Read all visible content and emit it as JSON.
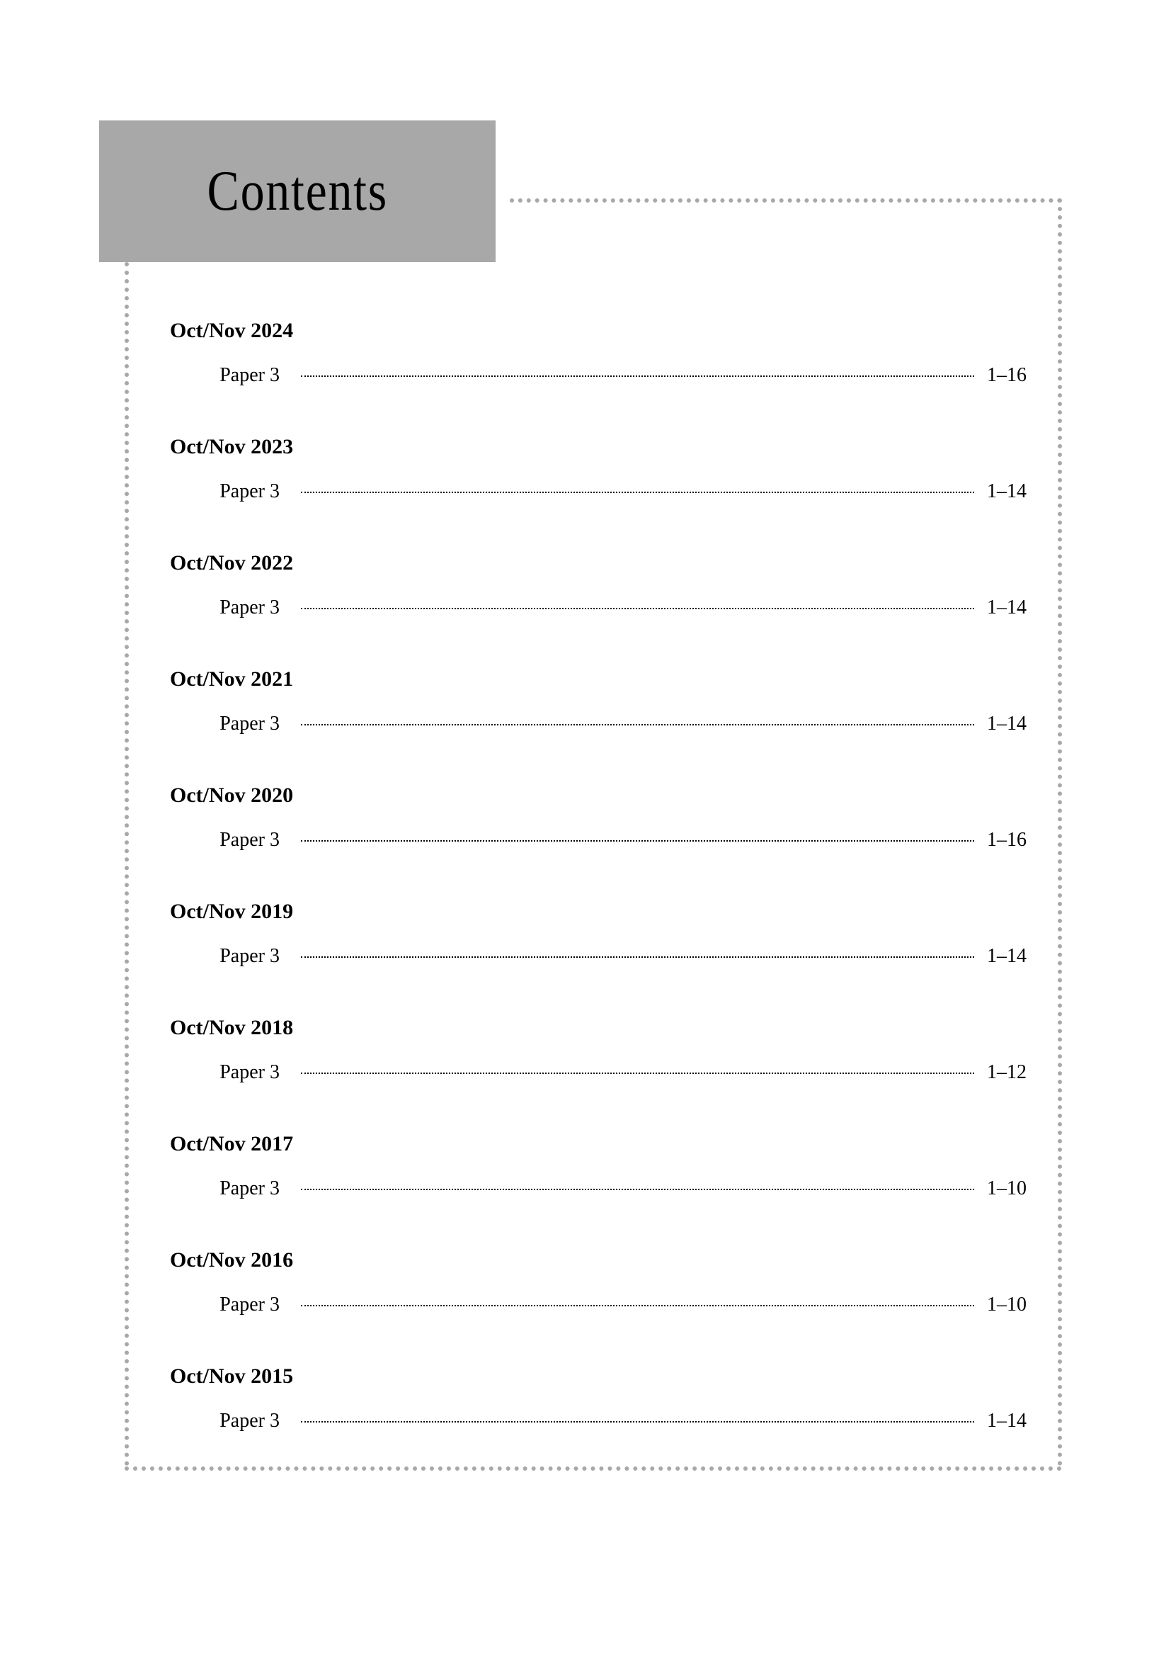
{
  "title": "Contents",
  "entries": [
    {
      "heading": "Oct/Nov 2024",
      "paper": "Paper 3",
      "pages": "1–16"
    },
    {
      "heading": "Oct/Nov 2023",
      "paper": "Paper 3",
      "pages": "1–14"
    },
    {
      "heading": "Oct/Nov 2022",
      "paper": "Paper 3",
      "pages": "1–14"
    },
    {
      "heading": "Oct/Nov 2021",
      "paper": "Paper 3",
      "pages": "1–14"
    },
    {
      "heading": "Oct/Nov 2020",
      "paper": "Paper 3",
      "pages": "1–16"
    },
    {
      "heading": "Oct/Nov 2019",
      "paper": "Paper 3",
      "pages": "1–14"
    },
    {
      "heading": "Oct/Nov 2018",
      "paper": "Paper 3",
      "pages": "1–12"
    },
    {
      "heading": "Oct/Nov 2017",
      "paper": "Paper 3",
      "pages": "1–10"
    },
    {
      "heading": "Oct/Nov 2016",
      "paper": "Paper 3",
      "pages": "1–10"
    },
    {
      "heading": "Oct/Nov 2015",
      "paper": "Paper 3",
      "pages": "1–14"
    }
  ],
  "colors": {
    "title_box_bg": "#a8a8a8",
    "title_text": "#000000",
    "body_text": "#000000",
    "dotted_border": "#a8a8a8",
    "page_bg": "#ffffff"
  },
  "typography": {
    "title_fontsize": 80,
    "heading_fontsize": 30,
    "body_fontsize": 28,
    "font_family": "Times New Roman"
  }
}
